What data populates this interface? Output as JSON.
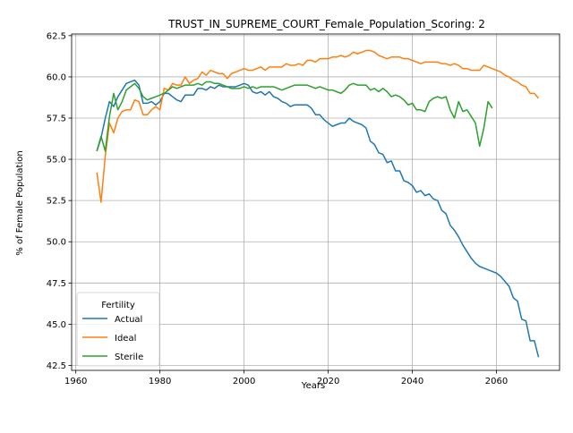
{
  "chart_data": {
    "type": "line",
    "title": "TRUST_IN_SUPREME_COURT_Female_Population_Scoring: 2",
    "xlabel": "Years",
    "ylabel": "% of Female Population",
    "xlim": [
      1959,
      2075
    ],
    "ylim": [
      42.2,
      62.6
    ],
    "xticks": [
      1960,
      1980,
      2000,
      2020,
      2040,
      2060
    ],
    "yticks": [
      42.5,
      45.0,
      47.5,
      50.0,
      52.5,
      55.0,
      57.5,
      60.0,
      62.5
    ],
    "grid": true,
    "legend": {
      "title": "Fertility",
      "position": "lower-left"
    },
    "series": [
      {
        "name": "Actual",
        "color": "#1f77b4",
        "points": [
          [
            1965,
            55.5
          ],
          [
            1966,
            56.3
          ],
          [
            1967,
            57.5
          ],
          [
            1968,
            58.5
          ],
          [
            1969,
            58.2
          ],
          [
            1970,
            58.8
          ],
          [
            1971,
            59.2
          ],
          [
            1972,
            59.6
          ],
          [
            1973,
            59.7
          ],
          [
            1974,
            59.8
          ],
          [
            1975,
            59.5
          ],
          [
            1976,
            58.4
          ],
          [
            1977,
            58.4
          ],
          [
            1978,
            58.5
          ],
          [
            1979,
            58.3
          ],
          [
            1980,
            58.5
          ],
          [
            1981,
            59.0
          ],
          [
            1982,
            59.0
          ],
          [
            1983,
            58.8
          ],
          [
            1984,
            58.6
          ],
          [
            1985,
            58.5
          ],
          [
            1986,
            58.9
          ],
          [
            1987,
            58.9
          ],
          [
            1988,
            58.9
          ],
          [
            1989,
            59.3
          ],
          [
            1990,
            59.3
          ],
          [
            1991,
            59.2
          ],
          [
            1992,
            59.4
          ],
          [
            1993,
            59.3
          ],
          [
            1994,
            59.5
          ],
          [
            1995,
            59.4
          ],
          [
            1996,
            59.4
          ],
          [
            1997,
            59.4
          ],
          [
            1998,
            59.4
          ],
          [
            1999,
            59.5
          ],
          [
            2000,
            59.6
          ],
          [
            2001,
            59.5
          ],
          [
            2002,
            59.1
          ],
          [
            2003,
            59.0
          ],
          [
            2004,
            59.1
          ],
          [
            2005,
            58.9
          ],
          [
            2006,
            59.1
          ],
          [
            2007,
            58.8
          ],
          [
            2008,
            58.7
          ],
          [
            2009,
            58.5
          ],
          [
            2010,
            58.4
          ],
          [
            2011,
            58.2
          ],
          [
            2012,
            58.3
          ],
          [
            2013,
            58.3
          ],
          [
            2014,
            58.3
          ],
          [
            2015,
            58.3
          ],
          [
            2016,
            58.1
          ],
          [
            2017,
            57.7
          ],
          [
            2018,
            57.7
          ],
          [
            2019,
            57.4
          ],
          [
            2020,
            57.2
          ],
          [
            2021,
            57.0
          ],
          [
            2022,
            57.1
          ],
          [
            2023,
            57.2
          ],
          [
            2024,
            57.2
          ],
          [
            2025,
            57.5
          ],
          [
            2026,
            57.3
          ],
          [
            2027,
            57.2
          ],
          [
            2028,
            57.1
          ],
          [
            2029,
            56.9
          ],
          [
            2030,
            56.1
          ],
          [
            2031,
            55.9
          ],
          [
            2032,
            55.4
          ],
          [
            2033,
            55.3
          ],
          [
            2034,
            54.8
          ],
          [
            2035,
            54.9
          ],
          [
            2036,
            54.3
          ],
          [
            2037,
            54.3
          ],
          [
            2038,
            53.7
          ],
          [
            2039,
            53.6
          ],
          [
            2040,
            53.4
          ],
          [
            2041,
            53.0
          ],
          [
            2042,
            53.1
          ],
          [
            2043,
            52.8
          ],
          [
            2044,
            52.9
          ],
          [
            2045,
            52.6
          ],
          [
            2046,
            52.5
          ],
          [
            2047,
            51.9
          ],
          [
            2048,
            51.7
          ],
          [
            2049,
            51.0
          ],
          [
            2050,
            50.7
          ],
          [
            2051,
            50.3
          ],
          [
            2052,
            49.8
          ],
          [
            2053,
            49.4
          ],
          [
            2054,
            49.0
          ],
          [
            2055,
            48.7
          ],
          [
            2056,
            48.5
          ],
          [
            2057,
            48.4
          ],
          [
            2058,
            48.3
          ],
          [
            2059,
            48.2
          ],
          [
            2060,
            48.1
          ],
          [
            2061,
            47.9
          ],
          [
            2062,
            47.6
          ],
          [
            2063,
            47.3
          ],
          [
            2064,
            46.6
          ],
          [
            2065,
            46.4
          ],
          [
            2066,
            45.3
          ],
          [
            2067,
            45.2
          ],
          [
            2068,
            44.0
          ],
          [
            2069,
            44.0
          ],
          [
            2070,
            43.0
          ]
        ]
      },
      {
        "name": "Ideal",
        "color": "#ff7f0e",
        "points": [
          [
            1965,
            54.2
          ],
          [
            1966,
            52.4
          ],
          [
            1967,
            55.2
          ],
          [
            1968,
            57.2
          ],
          [
            1969,
            56.6
          ],
          [
            1970,
            57.5
          ],
          [
            1971,
            57.9
          ],
          [
            1972,
            58.0
          ],
          [
            1973,
            58.0
          ],
          [
            1974,
            58.6
          ],
          [
            1975,
            58.5
          ],
          [
            1976,
            57.7
          ],
          [
            1977,
            57.7
          ],
          [
            1978,
            58.0
          ],
          [
            1979,
            58.2
          ],
          [
            1980,
            58.0
          ],
          [
            1981,
            59.3
          ],
          [
            1982,
            59.2
          ],
          [
            1983,
            59.6
          ],
          [
            1984,
            59.5
          ],
          [
            1985,
            59.5
          ],
          [
            1986,
            60.0
          ],
          [
            1987,
            59.6
          ],
          [
            1988,
            59.8
          ],
          [
            1989,
            59.9
          ],
          [
            1990,
            60.3
          ],
          [
            1991,
            60.1
          ],
          [
            1992,
            60.4
          ],
          [
            1993,
            60.3
          ],
          [
            1994,
            60.2
          ],
          [
            1995,
            60.2
          ],
          [
            1996,
            59.9
          ],
          [
            1997,
            60.2
          ],
          [
            1998,
            60.3
          ],
          [
            1999,
            60.4
          ],
          [
            2000,
            60.5
          ],
          [
            2001,
            60.4
          ],
          [
            2002,
            60.4
          ],
          [
            2003,
            60.5
          ],
          [
            2004,
            60.6
          ],
          [
            2005,
            60.4
          ],
          [
            2006,
            60.6
          ],
          [
            2007,
            60.6
          ],
          [
            2008,
            60.6
          ],
          [
            2009,
            60.6
          ],
          [
            2010,
            60.8
          ],
          [
            2011,
            60.7
          ],
          [
            2012,
            60.7
          ],
          [
            2013,
            60.8
          ],
          [
            2014,
            60.7
          ],
          [
            2015,
            61.0
          ],
          [
            2016,
            61.0
          ],
          [
            2017,
            60.9
          ],
          [
            2018,
            61.1
          ],
          [
            2019,
            61.1
          ],
          [
            2020,
            61.1
          ],
          [
            2021,
            61.2
          ],
          [
            2022,
            61.2
          ],
          [
            2023,
            61.3
          ],
          [
            2024,
            61.2
          ],
          [
            2025,
            61.3
          ],
          [
            2026,
            61.5
          ],
          [
            2027,
            61.4
          ],
          [
            2028,
            61.5
          ],
          [
            2029,
            61.6
          ],
          [
            2030,
            61.6
          ],
          [
            2031,
            61.5
          ],
          [
            2032,
            61.3
          ],
          [
            2033,
            61.2
          ],
          [
            2034,
            61.1
          ],
          [
            2035,
            61.2
          ],
          [
            2036,
            61.2
          ],
          [
            2037,
            61.2
          ],
          [
            2038,
            61.1
          ],
          [
            2039,
            61.1
          ],
          [
            2040,
            61.0
          ],
          [
            2041,
            60.9
          ],
          [
            2042,
            60.8
          ],
          [
            2043,
            60.9
          ],
          [
            2044,
            60.9
          ],
          [
            2045,
            60.9
          ],
          [
            2046,
            60.9
          ],
          [
            2047,
            60.8
          ],
          [
            2048,
            60.8
          ],
          [
            2049,
            60.7
          ],
          [
            2050,
            60.8
          ],
          [
            2051,
            60.7
          ],
          [
            2052,
            60.5
          ],
          [
            2053,
            60.5
          ],
          [
            2054,
            60.4
          ],
          [
            2055,
            60.4
          ],
          [
            2056,
            60.4
          ],
          [
            2057,
            60.7
          ],
          [
            2058,
            60.6
          ],
          [
            2059,
            60.5
          ],
          [
            2060,
            60.4
          ],
          [
            2061,
            60.3
          ],
          [
            2062,
            60.1
          ],
          [
            2063,
            60.0
          ],
          [
            2064,
            59.8
          ],
          [
            2065,
            59.7
          ],
          [
            2066,
            59.5
          ],
          [
            2067,
            59.4
          ],
          [
            2068,
            59.0
          ],
          [
            2069,
            59.0
          ],
          [
            2070,
            58.7
          ]
        ]
      },
      {
        "name": "Sterile",
        "color": "#2ca02c",
        "points": [
          [
            1965,
            55.5
          ],
          [
            1966,
            56.4
          ],
          [
            1967,
            55.5
          ],
          [
            1968,
            57.6
          ],
          [
            1969,
            59.0
          ],
          [
            1970,
            58.0
          ],
          [
            1971,
            58.5
          ],
          [
            1972,
            59.2
          ],
          [
            1973,
            59.4
          ],
          [
            1974,
            59.6
          ],
          [
            1975,
            59.3
          ],
          [
            1976,
            58.8
          ],
          [
            1977,
            58.6
          ],
          [
            1978,
            58.7
          ],
          [
            1979,
            58.8
          ],
          [
            1980,
            58.9
          ],
          [
            1981,
            59.0
          ],
          [
            1982,
            59.2
          ],
          [
            1983,
            59.4
          ],
          [
            1984,
            59.3
          ],
          [
            1985,
            59.4
          ],
          [
            1986,
            59.5
          ],
          [
            1987,
            59.5
          ],
          [
            1988,
            59.5
          ],
          [
            1989,
            59.6
          ],
          [
            1990,
            59.5
          ],
          [
            1991,
            59.7
          ],
          [
            1992,
            59.7
          ],
          [
            1993,
            59.6
          ],
          [
            1994,
            59.6
          ],
          [
            1995,
            59.5
          ],
          [
            1996,
            59.4
          ],
          [
            1997,
            59.3
          ],
          [
            1998,
            59.3
          ],
          [
            1999,
            59.3
          ],
          [
            2000,
            59.4
          ],
          [
            2001,
            59.3
          ],
          [
            2002,
            59.4
          ],
          [
            2003,
            59.3
          ],
          [
            2004,
            59.4
          ],
          [
            2005,
            59.4
          ],
          [
            2006,
            59.4
          ],
          [
            2007,
            59.4
          ],
          [
            2008,
            59.3
          ],
          [
            2009,
            59.2
          ],
          [
            2010,
            59.3
          ],
          [
            2011,
            59.4
          ],
          [
            2012,
            59.5
          ],
          [
            2013,
            59.5
          ],
          [
            2014,
            59.5
          ],
          [
            2015,
            59.5
          ],
          [
            2016,
            59.4
          ],
          [
            2017,
            59.3
          ],
          [
            2018,
            59.4
          ],
          [
            2019,
            59.3
          ],
          [
            2020,
            59.2
          ],
          [
            2021,
            59.2
          ],
          [
            2022,
            59.1
          ],
          [
            2023,
            59.0
          ],
          [
            2024,
            59.2
          ],
          [
            2025,
            59.5
          ],
          [
            2026,
            59.6
          ],
          [
            2027,
            59.5
          ],
          [
            2028,
            59.5
          ],
          [
            2029,
            59.5
          ],
          [
            2030,
            59.2
          ],
          [
            2031,
            59.3
          ],
          [
            2032,
            59.1
          ],
          [
            2033,
            59.3
          ],
          [
            2034,
            59.1
          ],
          [
            2035,
            58.8
          ],
          [
            2036,
            58.9
          ],
          [
            2037,
            58.8
          ],
          [
            2038,
            58.6
          ],
          [
            2039,
            58.3
          ],
          [
            2040,
            58.4
          ],
          [
            2041,
            58.0
          ],
          [
            2042,
            58.0
          ],
          [
            2043,
            57.9
          ],
          [
            2044,
            58.5
          ],
          [
            2045,
            58.7
          ],
          [
            2046,
            58.8
          ],
          [
            2047,
            58.7
          ],
          [
            2048,
            58.8
          ],
          [
            2049,
            58.0
          ],
          [
            2050,
            57.5
          ],
          [
            2051,
            58.5
          ],
          [
            2052,
            57.9
          ],
          [
            2053,
            58.0
          ],
          [
            2054,
            57.6
          ],
          [
            2055,
            57.2
          ],
          [
            2056,
            55.8
          ],
          [
            2057,
            56.9
          ],
          [
            2058,
            58.5
          ],
          [
            2059,
            58.1
          ]
        ]
      }
    ]
  }
}
